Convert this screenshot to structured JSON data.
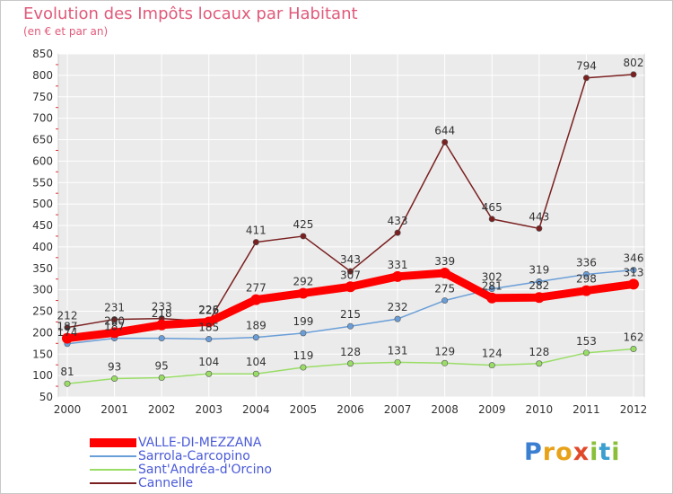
{
  "title": "Evolution des Impôts locaux par Habitant",
  "subtitle": "(en € et par an)",
  "brand": {
    "letters": [
      "P",
      "r",
      "o",
      "x",
      "i",
      "t",
      "i"
    ],
    "colors": [
      "#3b7fd0",
      "#e8a21a",
      "#e8a21a",
      "#e04a2a",
      "#8abf3a",
      "#3b9fd0",
      "#8abf3a"
    ]
  },
  "chart_data": {
    "type": "line",
    "x": [
      "2000",
      "2001",
      "2002",
      "2003",
      "2004",
      "2005",
      "2006",
      "2007",
      "2008",
      "2009",
      "2010",
      "2011",
      "2012"
    ],
    "ylim": [
      50,
      850
    ],
    "yticks": [
      50,
      100,
      150,
      200,
      250,
      300,
      350,
      400,
      450,
      500,
      550,
      600,
      650,
      700,
      750,
      800,
      850
    ],
    "grid": true,
    "legend_position": "bottom-left",
    "series": [
      {
        "name": "VALLE-DI-MEZZANA",
        "color": "#ff0000",
        "values": [
          187,
          200,
          218,
          225,
          277,
          292,
          307,
          331,
          339,
          281,
          282,
          298,
          313
        ],
        "labels": [
          "187",
          "200",
          "218",
          "225",
          "277",
          "292",
          "307",
          "331",
          "339",
          "281",
          "282",
          "298",
          "313"
        ]
      },
      {
        "name": "Sarrola-Carcopino",
        "color": "#6a9ed8",
        "values": [
          174,
          187,
          187,
          185,
          189,
          199,
          215,
          232,
          275,
          302,
          319,
          336,
          346
        ],
        "labels": [
          "174",
          "187",
          "",
          "185",
          "189",
          "199",
          "215",
          "232",
          "275",
          "302",
          "319",
          "336",
          "346"
        ]
      },
      {
        "name": "Sant'Andréa-d'Orcino",
        "color": "#99dd66",
        "values": [
          81,
          93,
          95,
          104,
          104,
          119,
          128,
          131,
          129,
          124,
          128,
          153,
          162
        ],
        "labels": [
          "81",
          "93",
          "95",
          "104",
          "104",
          "119",
          "128",
          "131",
          "129",
          "124",
          "128",
          "153",
          "162"
        ]
      },
      {
        "name": "Cannelle",
        "color": "#7a2020",
        "values": [
          212,
          231,
          233,
          226,
          411,
          425,
          343,
          433,
          644,
          465,
          443,
          794,
          802
        ],
        "labels": [
          "212",
          "231",
          "233",
          "226",
          "411",
          "425",
          "343",
          "433",
          "644",
          "465",
          "443",
          "794",
          "802"
        ]
      }
    ]
  }
}
